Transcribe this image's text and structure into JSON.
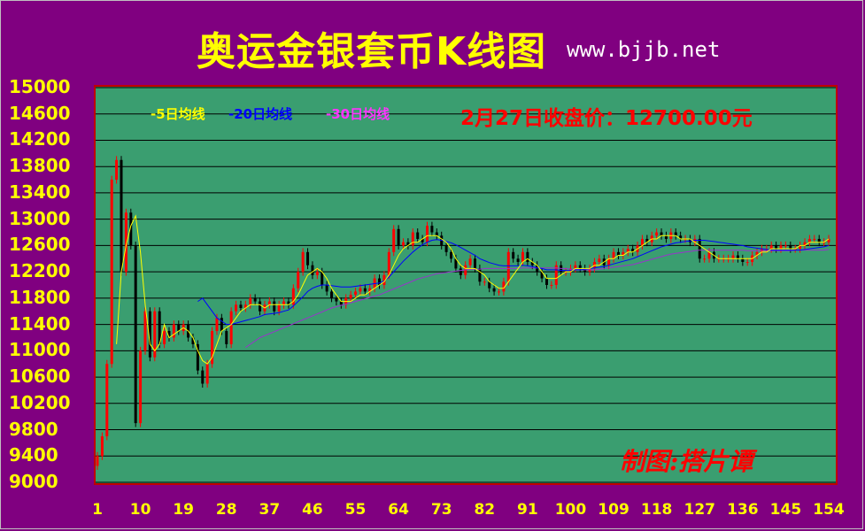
{
  "title": "奥运金银套币K线图",
  "site": "www.bjjb.net",
  "legend": {
    "ma5": "-5日均线",
    "ma20": "-20日均线",
    "ma30": "-30日均线"
  },
  "close_info": "2月27日收盘价：12700.00元",
  "credit": "制图:搭片谭",
  "colors": {
    "background": "#800080",
    "plot_bg": "#3a9e70",
    "up": "#ff0000",
    "down": "#000000",
    "ma5": "#ffff00",
    "ma20": "#0000ff",
    "ma30": "#9933cc"
  },
  "chart_data": {
    "type": "candlestick",
    "ylim": [
      9000,
      15000
    ],
    "yticks": [
      "15000",
      "14600",
      "14200",
      "13800",
      "13400",
      "13000",
      "12600",
      "12200",
      "11800",
      "11400",
      "11000",
      "10600",
      "10200",
      "9800",
      "9400",
      "9000"
    ],
    "xticks": [
      "1",
      "10",
      "19",
      "28",
      "37",
      "46",
      "55",
      "64",
      "73",
      "82",
      "91",
      "100",
      "109",
      "118",
      "127",
      "136",
      "145",
      "154"
    ],
    "grid": true,
    "close": [
      9400,
      9700,
      10800,
      13600,
      13900,
      12200,
      13100,
      12600,
      9900,
      11000,
      11600,
      10900,
      11600,
      11100,
      11300,
      11200,
      11400,
      11300,
      11400,
      11200,
      11100,
      10700,
      10500,
      10800,
      11300,
      11500,
      11300,
      11100,
      11600,
      11700,
      11650,
      11700,
      11800,
      11750,
      11600,
      11700,
      11750,
      11600,
      11700,
      11750,
      11700,
      11950,
      12200,
      12500,
      12300,
      12150,
      12200,
      12000,
      11900,
      11800,
      11750,
      11700,
      11800,
      11850,
      11900,
      11950,
      11900,
      11950,
      12100,
      12000,
      12150,
      12500,
      12850,
      12600,
      12650,
      12600,
      12800,
      12700,
      12650,
      12900,
      12800,
      12750,
      12600,
      12500,
      12400,
      12250,
      12150,
      12300,
      12400,
      12250,
      12050,
      12050,
      11950,
      11900,
      11900,
      12050,
      12500,
      12400,
      12350,
      12500,
      12350,
      12300,
      12200,
      12100,
      12000,
      12000,
      12300,
      12200,
      12200,
      12250,
      12300,
      12250,
      12200,
      12250,
      12350,
      12400,
      12300,
      12400,
      12500,
      12450,
      12500,
      12550,
      12500,
      12600,
      12700,
      12650,
      12750,
      12800,
      12750,
      12700,
      12800,
      12750,
      12700,
      12700,
      12650,
      12700,
      12400,
      12400,
      12500,
      12400,
      12400,
      12400,
      12400,
      12450,
      12400,
      12350,
      12350,
      12450,
      12500,
      12550,
      12550,
      12600,
      12550,
      12600,
      12600,
      12550,
      12550,
      12600,
      12650,
      12700,
      12700,
      12650,
      12650,
      12700
    ],
    "ma5": [
      null,
      null,
      null,
      null,
      11100,
      12200,
      12600,
      12900,
      13050,
      12500,
      11700,
      11100,
      11000,
      11100,
      11400,
      11200,
      11250,
      11300,
      11350,
      11300,
      11200,
      11000,
      10850,
      10800,
      10900,
      11100,
      11300,
      11350,
      11400,
      11500,
      11600,
      11650,
      11700,
      11700,
      11700,
      11650,
      11700,
      11700,
      11700,
      11700,
      11700,
      11750,
      11850,
      12000,
      12150,
      12200,
      12250,
      12200,
      12100,
      11950,
      11850,
      11750,
      11750,
      11750,
      11800,
      11850,
      11850,
      11900,
      11950,
      12000,
      12050,
      12150,
      12300,
      12450,
      12550,
      12600,
      12650,
      12650,
      12700,
      12750,
      12750,
      12750,
      12700,
      12650,
      12550,
      12400,
      12300,
      12250,
      12250,
      12250,
      12200,
      12150,
      12050,
      12000,
      11950,
      11950,
      12050,
      12150,
      12250,
      12350,
      12400,
      12350,
      12300,
      12200,
      12100,
      12100,
      12100,
      12150,
      12200,
      12200,
      12250,
      12250,
      12250,
      12250,
      12300,
      12300,
      12350,
      12400,
      12400,
      12450,
      12450,
      12500,
      12500,
      12550,
      12600,
      12650,
      12700,
      12700,
      12750,
      12750,
      12750,
      12750,
      12700,
      12700,
      12700,
      12650,
      12600,
      12550,
      12500,
      12450,
      12400,
      12400,
      12400,
      12400,
      12400,
      12400,
      12400,
      12400,
      12450,
      12500,
      12500,
      12550,
      12550,
      12550,
      12550,
      12550,
      12550,
      12600,
      12600,
      12650,
      12650,
      12650,
      12650,
      12700
    ],
    "ma20": [
      null,
      null,
      null,
      null,
      null,
      null,
      null,
      null,
      null,
      null,
      null,
      null,
      null,
      null,
      null,
      null,
      null,
      null,
      null,
      null,
      null,
      11750,
      11800,
      11700,
      11600,
      11500,
      11450,
      11400,
      11400,
      11420,
      11440,
      11460,
      11480,
      11500,
      11520,
      11550,
      11560,
      11570,
      11580,
      11600,
      11620,
      11680,
      11750,
      11820,
      11900,
      11950,
      11980,
      12000,
      12000,
      11990,
      11980,
      11970,
      11970,
      11970,
      11980,
      11990,
      12000,
      12010,
      12020,
      12030,
      12060,
      12120,
      12200,
      12280,
      12360,
      12430,
      12500,
      12560,
      12610,
      12650,
      12680,
      12690,
      12680,
      12660,
      12640,
      12610,
      12570,
      12530,
      12490,
      12450,
      12400,
      12370,
      12340,
      12320,
      12300,
      12290,
      12290,
      12290,
      12290,
      12300,
      12290,
      12280,
      12260,
      12250,
      12230,
      12230,
      12230,
      12220,
      12220,
      12220,
      12230,
      12230,
      12240,
      12250,
      12260,
      12270,
      12280,
      12300,
      12320,
      12340,
      12360,
      12380,
      12400,
      12430,
      12460,
      12490,
      12520,
      12550,
      12580,
      12600,
      12620,
      12640,
      12650,
      12660,
      12670,
      12680,
      12680,
      12680,
      12670,
      12660,
      12650,
      12640,
      12630,
      12620,
      12610,
      12600,
      12580,
      12570,
      12560,
      12550,
      12540,
      12530,
      12530,
      12530,
      12530,
      12530,
      12530,
      12530,
      12540,
      12550,
      12560,
      12570,
      12580,
      12600
    ],
    "ma30": [
      null,
      null,
      null,
      null,
      null,
      null,
      null,
      null,
      null,
      null,
      null,
      null,
      null,
      null,
      null,
      null,
      null,
      null,
      null,
      null,
      null,
      null,
      null,
      null,
      null,
      null,
      null,
      null,
      null,
      null,
      null,
      11050,
      11100,
      11150,
      11200,
      11230,
      11260,
      11290,
      11320,
      11350,
      11380,
      11410,
      11440,
      11470,
      11500,
      11530,
      11560,
      11590,
      11620,
      11650,
      11670,
      11690,
      11710,
      11730,
      11750,
      11770,
      11790,
      11810,
      11830,
      11850,
      11880,
      11910,
      11940,
      11970,
      12000,
      12030,
      12060,
      12090,
      12110,
      12130,
      12150,
      12170,
      12180,
      12190,
      12200,
      12210,
      12220,
      12230,
      12240,
      12240,
      12240,
      12250,
      12250,
      12250,
      12250,
      12250,
      12250,
      12250,
      12250,
      12260,
      12260,
      12260,
      12260,
      12260,
      12260,
      12260,
      12260,
      12250,
      12250,
      12240,
      12240,
      12230,
      12230,
      12230,
      12230,
      12240,
      12250,
      12260,
      12270,
      12280,
      12290,
      12300,
      12310,
      12330,
      12350,
      12370,
      12390,
      12410,
      12430,
      12450,
      12470,
      12480,
      12490,
      12500,
      12510,
      12520,
      12530,
      12530,
      12530,
      12530,
      12530,
      12530,
      12530,
      12530,
      12530,
      12530,
      12520,
      12520,
      12520,
      12520,
      12520,
      12520,
      12520,
      12520,
      12520,
      12520,
      12530,
      12530,
      12530,
      12530,
      12530,
      12530,
      12530,
      12540
    ]
  }
}
